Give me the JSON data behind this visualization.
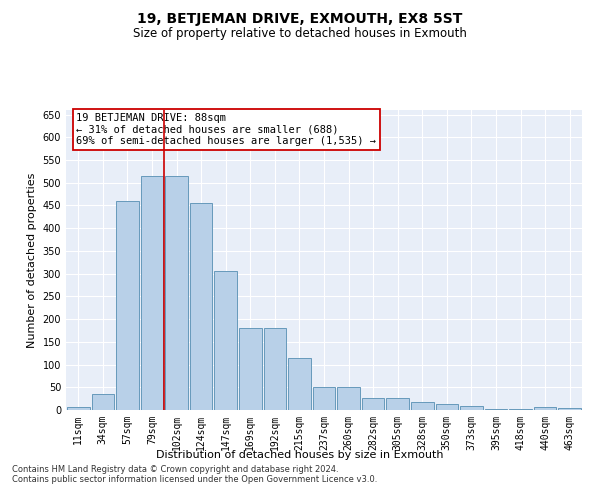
{
  "title": "19, BETJEMAN DRIVE, EXMOUTH, EX8 5ST",
  "subtitle": "Size of property relative to detached houses in Exmouth",
  "xlabel": "Distribution of detached houses by size in Exmouth",
  "ylabel": "Number of detached properties",
  "categories": [
    "11sqm",
    "34sqm",
    "57sqm",
    "79sqm",
    "102sqm",
    "124sqm",
    "147sqm",
    "169sqm",
    "192sqm",
    "215sqm",
    "237sqm",
    "260sqm",
    "282sqm",
    "305sqm",
    "328sqm",
    "350sqm",
    "373sqm",
    "395sqm",
    "418sqm",
    "440sqm",
    "463sqm"
  ],
  "values": [
    7,
    35,
    460,
    515,
    515,
    455,
    305,
    180,
    180,
    115,
    50,
    50,
    27,
    27,
    18,
    13,
    9,
    2,
    2,
    7,
    5
  ],
  "bar_color": "#b8d0e8",
  "bar_edge_color": "#6699bb",
  "background_color": "#e8eef8",
  "grid_color": "#ffffff",
  "vline_color": "#cc0000",
  "annotation_text": "19 BETJEMAN DRIVE: 88sqm\n← 31% of detached houses are smaller (688)\n69% of semi-detached houses are larger (1,535) →",
  "annotation_box_color": "#ffffff",
  "annotation_box_edge_color": "#cc0000",
  "footer1": "Contains HM Land Registry data © Crown copyright and database right 2024.",
  "footer2": "Contains public sector information licensed under the Open Government Licence v3.0.",
  "ylim": [
    0,
    660
  ],
  "yticks": [
    0,
    50,
    100,
    150,
    200,
    250,
    300,
    350,
    400,
    450,
    500,
    550,
    600,
    650
  ],
  "title_fontsize": 10,
  "subtitle_fontsize": 8.5,
  "axis_label_fontsize": 8,
  "tick_fontsize": 7,
  "annotation_fontsize": 7.5,
  "footer_fontsize": 6
}
